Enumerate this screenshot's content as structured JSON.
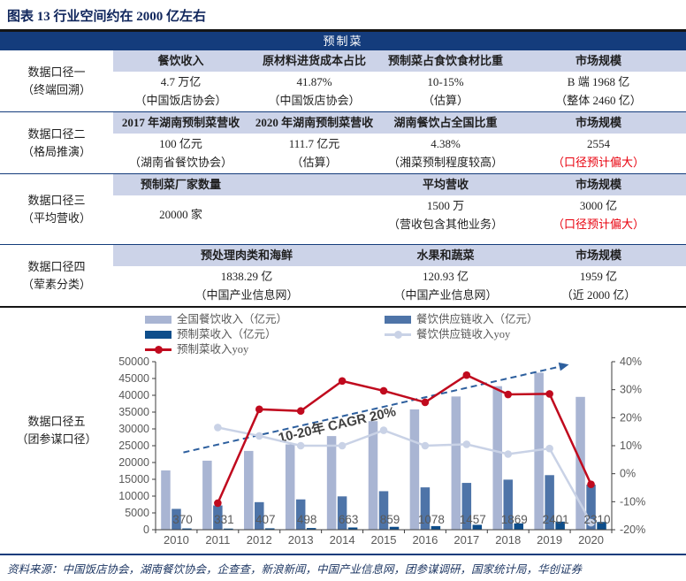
{
  "colors": {
    "navy": "#143c7c",
    "band": "#ccd3e8",
    "red": "#e8000d",
    "title": "#10265c",
    "text": "#1f1f1f",
    "footer": "#1f3864",
    "rule": "#151515",
    "axis_grey": "#595959"
  },
  "title": "图表 13  行业空间约在 2000 亿左右",
  "table": {
    "header": "预制菜",
    "groups": [
      {
        "label": "数据口径一",
        "sublabel": "（终端回溯）",
        "columns": [
          {
            "header": "餐饮收入",
            "value": "4.7 万亿",
            "note": "（中国饭店协会）"
          },
          {
            "header": "原材料进货成本占比",
            "value": "41.87%",
            "note": "（中国饭店协会）"
          },
          {
            "header": "预制菜占食饮食材比重",
            "value": "10-15%",
            "note": "（估算）"
          },
          {
            "header": "市场规模",
            "value": "B 端 1968 亿",
            "note": "（整体 2460 亿）"
          }
        ]
      },
      {
        "label": "数据口径二",
        "sublabel": "（格局推演）",
        "columns": [
          {
            "header": "2017 年湖南预制菜营收",
            "value": "100 亿元",
            "note": "（湖南省餐饮协会）"
          },
          {
            "header": "2020 年湖南预制菜营收",
            "value": "111.7 亿元",
            "note": "（估算）"
          },
          {
            "header": "湖南餐饮占全国比重",
            "value": "4.38%",
            "note": "（湘菜预制程度较高）"
          },
          {
            "header": "市场规模",
            "value": "2554",
            "note": "（口径预计偏大）",
            "note_red": true
          }
        ]
      },
      {
        "label": "数据口径三",
        "sublabel": "（平均营收）",
        "columns": [
          {
            "header": "预制菜厂家数量",
            "value": "20000 家",
            "note": ""
          },
          {
            "header": "",
            "value": "",
            "note": ""
          },
          {
            "header": "平均营收",
            "value": "1500 万",
            "note": "（营收包含其他业务）"
          },
          {
            "header": "市场规模",
            "value": "3000 亿",
            "note": "（口径预计偏大）",
            "note_red": true
          }
        ]
      },
      {
        "label": "数据口径四",
        "sublabel": "（荤素分类）",
        "columns": [
          {
            "header": "预处理肉类和海鲜",
            "value": "1838.29 亿",
            "note": "（中国产业信息网）"
          },
          {
            "header": "水果和蔬菜",
            "value": "120.93 亿",
            "note": "（中国产业信息网）"
          },
          {
            "header": "市场规模",
            "value": "1959 亿",
            "note": "（近 2000 亿）"
          }
        ]
      },
      {
        "label": "数据口径五",
        "sublabel": "（团参谋口径）"
      }
    ]
  },
  "chart_data": {
    "type": "bar+line combo",
    "categories": [
      "2010",
      "2011",
      "2012",
      "2013",
      "2014",
      "2015",
      "2016",
      "2017",
      "2018",
      "2019",
      "2020"
    ],
    "left_axis": {
      "min": 0,
      "max": 50000,
      "step": 5000
    },
    "right_axis": {
      "min": -20,
      "max": 40,
      "step": 10,
      "suffix": "%"
    },
    "legend_position": "top",
    "grid": false,
    "series": [
      {
        "name": "全国餐饮收入（亿元）",
        "kind": "bar",
        "slot": 0,
        "legend_col": 0,
        "color": "#a9b5d3",
        "values": [
          17648,
          20543,
          23448,
          25392,
          27860,
          32310,
          35799,
          39644,
          42716,
          46721,
          39527
        ]
      },
      {
        "name": "预制菜收入（亿元）",
        "kind": "bar",
        "slot": 2,
        "legend_col": 0,
        "color": "#0e4e8b",
        "data_labels": true,
        "values": [
          370,
          331,
          407,
          498,
          663,
          859,
          1078,
          1457,
          1869,
          2401,
          2310
        ]
      },
      {
        "name": "预制菜收入yoy",
        "kind": "line",
        "legend_col": 0,
        "color": "#c00a1e",
        "values": [
          null,
          -10.5,
          23.0,
          22.4,
          33.1,
          29.6,
          25.5,
          35.2,
          28.3,
          28.5,
          -3.8
        ]
      },
      {
        "name": "餐饮供应链收入（亿元）",
        "kind": "bar",
        "slot": 1,
        "legend_col": 1,
        "color": "#4e74a8",
        "values": [
          6200,
          7220,
          8200,
          9020,
          9920,
          11460,
          12600,
          13930,
          14900,
          16240,
          13400
        ]
      },
      {
        "name": "餐饮供应链收入yoy",
        "kind": "line",
        "legend_col": 1,
        "color": "#c9d2e6",
        "values": [
          null,
          16.5,
          13.5,
          10.0,
          10.0,
          15.5,
          10.0,
          10.5,
          7.0,
          9.0,
          -17.5
        ]
      }
    ],
    "trend": {
      "text": "10-20年 CAGR 20%",
      "color": "#2d5f9e",
      "text_color": "#404040",
      "start_value": 23000,
      "end_value": 48800
    }
  },
  "footer": {
    "source_line": "资料来源：中国饭店协会，湖南餐饮协会，企查查，新浪新闻，中国产业信息网，团参谋调研，国家统计局，华创证券"
  }
}
